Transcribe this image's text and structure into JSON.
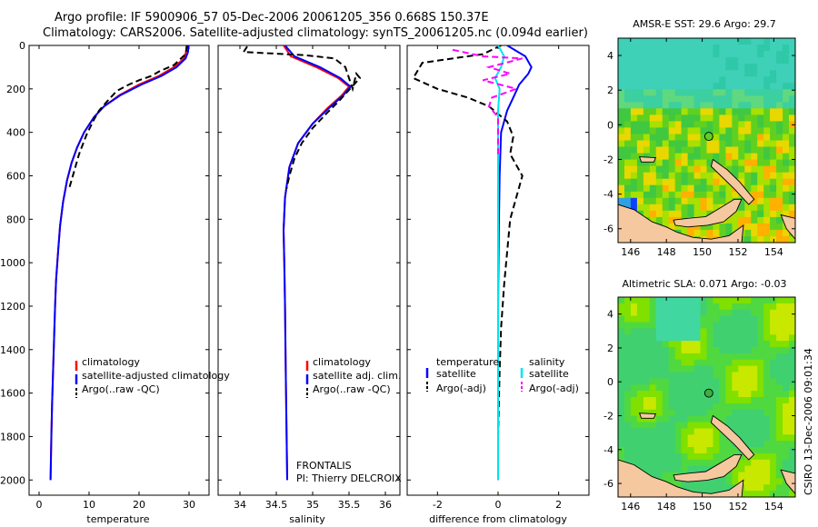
{
  "header": {
    "line1": "Argo profile: IF 5900906_57 05-Dec-2006 20061205_356 0.668S 150.37E",
    "line2": "Climatology: CARS2006. Satellite-adjusted climatology: synTS_20061205.nc (0.094d earlier)"
  },
  "footer": {
    "stamp": "CSIRO 13-Dec-2006 09:01:34"
  },
  "colors": {
    "climatology": "#ff0000",
    "satellite": "#0000ff",
    "argo": "#000000",
    "cyan": "#00e5ee",
    "magenta": "#ff00ff",
    "land": "#f5c8a0"
  },
  "chart_data": [
    {
      "type": "line",
      "id": "temperature",
      "xlabel": "temperature",
      "ylabel": "",
      "xlim": [
        -2,
        34
      ],
      "ylim": [
        2070,
        0
      ],
      "y_reversed": true,
      "xticks": [
        0,
        10,
        20,
        30
      ],
      "xtick_labels": [
        "0",
        "10",
        "20",
        "30"
      ],
      "yticks": [
        0,
        200,
        400,
        600,
        800,
        1000,
        1200,
        1400,
        1600,
        1800,
        2000
      ],
      "ytick_labels": [
        "0",
        "200",
        "400",
        "600",
        "800",
        "1000",
        "1200",
        "1400",
        "1600",
        "1800",
        "2000"
      ],
      "legend": [
        "climatology",
        "satellite-adjusted climatology",
        "Argo(..raw -QC)"
      ],
      "legend_position": "lower-right",
      "series": [
        {
          "name": "climatology",
          "color": "#ff0000",
          "dash": "solid",
          "points": [
            [
              29.5,
              0
            ],
            [
              29.4,
              30
            ],
            [
              29.0,
              60
            ],
            [
              27.0,
              100
            ],
            [
              24.0,
              140
            ],
            [
              20.0,
              180
            ],
            [
              16.0,
              230
            ],
            [
              13.0,
              280
            ],
            [
              11.0,
              330
            ],
            [
              9.0,
              400
            ],
            [
              7.6,
              470
            ],
            [
              6.5,
              540
            ],
            [
              5.6,
              620
            ],
            [
              4.8,
              720
            ],
            [
              4.2,
              830
            ],
            [
              3.8,
              950
            ],
            [
              3.4,
              1080
            ],
            [
              3.2,
              1200
            ],
            [
              3.0,
              1350
            ],
            [
              2.8,
              1500
            ],
            [
              2.6,
              1650
            ],
            [
              2.45,
              1800
            ],
            [
              2.3,
              2000
            ]
          ]
        },
        {
          "name": "satellite-adjusted climatology",
          "color": "#0000ff",
          "dash": "solid",
          "points": [
            [
              29.9,
              0
            ],
            [
              29.8,
              30
            ],
            [
              29.3,
              60
            ],
            [
              27.5,
              100
            ],
            [
              24.5,
              140
            ],
            [
              20.5,
              180
            ],
            [
              16.2,
              230
            ],
            [
              13.0,
              280
            ],
            [
              11.0,
              330
            ],
            [
              9.0,
              400
            ],
            [
              7.6,
              470
            ],
            [
              6.5,
              540
            ],
            [
              5.6,
              620
            ],
            [
              4.8,
              720
            ],
            [
              4.2,
              830
            ],
            [
              3.8,
              950
            ],
            [
              3.4,
              1080
            ],
            [
              3.2,
              1200
            ],
            [
              3.0,
              1350
            ],
            [
              2.8,
              1500
            ],
            [
              2.6,
              1650
            ],
            [
              2.45,
              1800
            ],
            [
              2.3,
              2000
            ]
          ]
        },
        {
          "name": "Argo(..raw -QC)",
          "color": "#000000",
          "dash": "dashed",
          "points": [
            [
              29.6,
              0
            ],
            [
              29.3,
              40
            ],
            [
              27.0,
              90
            ],
            [
              24.0,
              120
            ],
            [
              22.5,
              140
            ],
            [
              20.0,
              160
            ],
            [
              18.0,
              180
            ],
            [
              15.5,
              210
            ],
            [
              13.5,
              260
            ],
            [
              12.0,
              300
            ],
            [
              11.0,
              340
            ],
            [
              9.5,
              410
            ],
            [
              8.0,
              500
            ],
            [
              7.0,
              580
            ],
            [
              6.0,
              660
            ]
          ]
        }
      ],
      "annotations": []
    },
    {
      "type": "line",
      "id": "salinity",
      "xlabel": "salinity",
      "ylabel": "",
      "xlim": [
        33.7,
        36.2
      ],
      "ylim": [
        2070,
        0
      ],
      "y_reversed": true,
      "xticks": [
        34,
        34.5,
        35,
        35.5,
        36
      ],
      "xtick_labels": [
        "34",
        "34.5",
        "35",
        "35.5",
        "36"
      ],
      "legend": [
        "climatology",
        "satellite adj. clim.",
        "Argo(..raw -QC)"
      ],
      "legend_position": "lower-right",
      "series": [
        {
          "name": "climatology",
          "color": "#ff0000",
          "dash": "solid",
          "points": [
            [
              34.6,
              0
            ],
            [
              34.7,
              50
            ],
            [
              35.05,
              100
            ],
            [
              35.35,
              150
            ],
            [
              35.5,
              190
            ],
            [
              35.4,
              230
            ],
            [
              35.2,
              290
            ],
            [
              35.0,
              360
            ],
            [
              34.8,
              450
            ],
            [
              34.68,
              560
            ],
            [
              34.62,
              700
            ],
            [
              34.6,
              850
            ],
            [
              34.61,
              1000
            ],
            [
              34.62,
              1200
            ],
            [
              34.63,
              1500
            ],
            [
              34.65,
              2000
            ]
          ]
        },
        {
          "name": "satellite adj. clim.",
          "color": "#0000ff",
          "dash": "solid",
          "points": [
            [
              34.62,
              0
            ],
            [
              34.75,
              50
            ],
            [
              35.1,
              100
            ],
            [
              35.38,
              150
            ],
            [
              35.52,
              190
            ],
            [
              35.42,
              230
            ],
            [
              35.22,
              290
            ],
            [
              35.0,
              360
            ],
            [
              34.8,
              450
            ],
            [
              34.68,
              560
            ],
            [
              34.62,
              700
            ],
            [
              34.6,
              850
            ],
            [
              34.61,
              1000
            ],
            [
              34.62,
              1200
            ],
            [
              34.63,
              1500
            ],
            [
              34.65,
              2000
            ]
          ]
        },
        {
          "name": "Argo(..raw -QC)",
          "color": "#000000",
          "dash": "dashed",
          "points": [
            [
              34.1,
              5
            ],
            [
              34.05,
              30
            ],
            [
              34.9,
              45
            ],
            [
              35.3,
              60
            ],
            [
              35.45,
              100
            ],
            [
              35.5,
              150
            ],
            [
              35.55,
              200
            ],
            [
              35.6,
              130
            ],
            [
              35.65,
              150
            ],
            [
              35.35,
              260
            ],
            [
              35.2,
              310
            ],
            [
              35.0,
              380
            ],
            [
              34.85,
              450
            ],
            [
              34.75,
              520
            ],
            [
              34.68,
              600
            ],
            [
              34.64,
              660
            ]
          ]
        }
      ],
      "annotations": [
        "FRONTALIS",
        "PI: Thierry DELCROIX"
      ]
    },
    {
      "type": "line",
      "id": "difference",
      "xlabel": "difference from climatology",
      "ylabel": "",
      "xlim": [
        -3,
        3
      ],
      "ylim": [
        2070,
        0
      ],
      "y_reversed": true,
      "xticks": [
        -2,
        0,
        2
      ],
      "xtick_labels": [
        "-2",
        "0",
        "2"
      ],
      "legend": [
        "temperature",
        "satellite",
        "Argo(-adj)",
        "salinity",
        "satellite",
        "Argo(-adj)"
      ],
      "legend_position": "lower",
      "series": [
        {
          "name": "temperature satellite",
          "color": "#0000ff",
          "dash": "solid",
          "points": [
            [
              0.3,
              0
            ],
            [
              0.9,
              50
            ],
            [
              1.1,
              100
            ],
            [
              1.0,
              130
            ],
            [
              0.7,
              180
            ],
            [
              0.5,
              240
            ],
            [
              0.3,
              300
            ],
            [
              0.1,
              400
            ],
            [
              0.05,
              600
            ],
            [
              0.03,
              800
            ],
            [
              0.0,
              1200
            ],
            [
              0.0,
              2000
            ]
          ]
        },
        {
          "name": "temperature Argo(-adj)",
          "color": "#000000",
          "dash": "dashed",
          "points": [
            [
              0.1,
              0
            ],
            [
              -0.5,
              40
            ],
            [
              -2.5,
              80
            ],
            [
              -2.8,
              150
            ],
            [
              -2.0,
              200
            ],
            [
              -1.0,
              240
            ],
            [
              -0.3,
              280
            ],
            [
              0.3,
              350
            ],
            [
              0.5,
              420
            ],
            [
              0.4,
              500
            ],
            [
              0.8,
              600
            ],
            [
              0.6,
              700
            ],
            [
              0.4,
              800
            ],
            [
              0.3,
              950
            ],
            [
              0.2,
              1100
            ],
            [
              0.1,
              1300
            ],
            [
              0.05,
              1500
            ],
            [
              0.0,
              1800
            ]
          ]
        },
        {
          "name": "salinity satellite",
          "color": "#00e5ee",
          "dash": "solid",
          "points": [
            [
              0.0,
              0
            ],
            [
              0.2,
              50
            ],
            [
              0.1,
              100
            ],
            [
              -0.1,
              150
            ],
            [
              0.05,
              200
            ],
            [
              0.0,
              300
            ],
            [
              0.0,
              600
            ],
            [
              0.0,
              1000
            ],
            [
              0.0,
              1500
            ],
            [
              0.0,
              2000
            ]
          ]
        },
        {
          "name": "salinity Argo(-adj)",
          "color": "#ff00ff",
          "dash": "dashed",
          "points": [
            [
              -1.5,
              20
            ],
            [
              -0.5,
              50
            ],
            [
              0.8,
              60
            ],
            [
              -0.3,
              100
            ],
            [
              0.4,
              130
            ],
            [
              -0.5,
              160
            ],
            [
              0.6,
              200
            ],
            [
              -0.2,
              240
            ],
            [
              -0.3,
              280
            ],
            [
              0.0,
              330
            ],
            [
              0.0,
              500
            ]
          ]
        }
      ],
      "annotations": []
    },
    {
      "type": "heatmap",
      "id": "sst_map",
      "title": "AMSR-E SST: 29.6 Argo: 29.7",
      "xlim": [
        145.3,
        155.2
      ],
      "ylim": [
        -6.8,
        5.0
      ],
      "xticks": [
        146,
        148,
        150,
        152,
        154
      ],
      "xtick_labels": [
        "146",
        "148",
        "150",
        "152",
        "154"
      ],
      "yticks": [
        4,
        2,
        0,
        -2,
        -4,
        -6
      ],
      "ytick_labels": [
        "4",
        "2",
        "0",
        "-2",
        "-4",
        "-6"
      ],
      "marker": {
        "lon": 150.37,
        "lat": -0.668
      }
    },
    {
      "type": "heatmap",
      "id": "sla_map",
      "title": "Altimetric SLA: 0.071 Argo: -0.03",
      "xlim": [
        145.3,
        155.2
      ],
      "ylim": [
        -6.8,
        5.0
      ],
      "xticks": [
        146,
        148,
        150,
        152,
        154
      ],
      "xtick_labels": [
        "146",
        "148",
        "150",
        "152",
        "154"
      ],
      "yticks": [
        4,
        2,
        0,
        -2,
        -4,
        -6
      ],
      "ytick_labels": [
        "4",
        "2",
        "0",
        "-2",
        "-4",
        "-6"
      ],
      "marker": {
        "lon": 150.37,
        "lat": -0.668
      }
    }
  ]
}
